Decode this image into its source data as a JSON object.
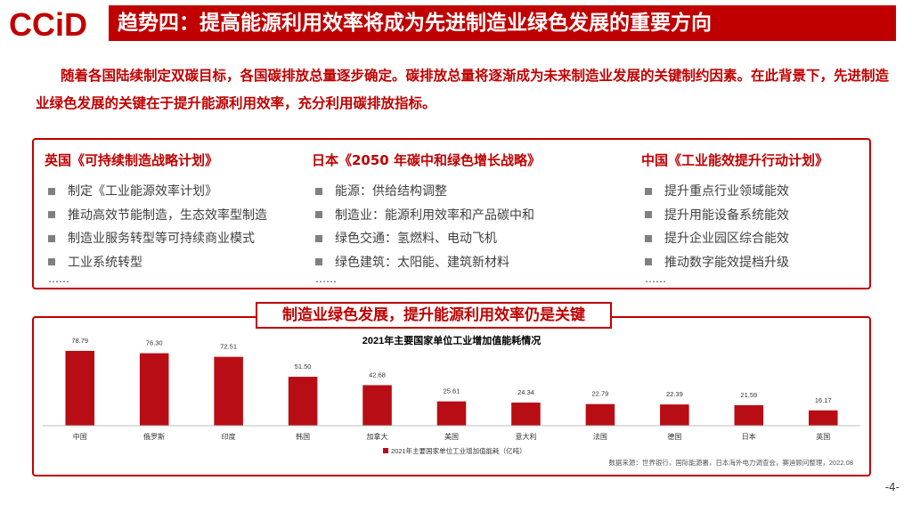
{
  "logo": {
    "text": "CCiD"
  },
  "header": {
    "title": "趋势四：提高能源利用效率将成为先进制造业绿色发展的重要方向"
  },
  "intro": {
    "text": "随着各国陆续制定双碳目标，各国碳排放总量逐步确定。碳排放总量将逐渐成为未来制造业发展的关键制约因素。在此背景下，先进制造业绿色发展的关键在于提升能源利用效率，充分利用碳排放指标。"
  },
  "policies": [
    {
      "title": "英国《可持续制造战略计划》",
      "items": [
        "制定《工业能源效率计划》",
        "推动高效节能制造，生态效率型制造",
        "制造业服务转型等可持续商业模式",
        "工业系统转型"
      ],
      "more": "……"
    },
    {
      "title": "日本《2050  年碳中和绿色增长战略》",
      "items": [
        "能源：供给结构调整",
        "制造业：能源利用效率和产品碳中和",
        "绿色交通：氢燃料、电动飞机",
        "绿色建筑：太阳能、建筑新材料"
      ],
      "more": "……"
    },
    {
      "title": "中国《工业能效提升行动计划》",
      "items": [
        "提升重点行业领域能效",
        "提升用能设备系统能效",
        "提升企业园区综合能效",
        "推动数字能效提档升级"
      ],
      "more": "……"
    }
  ],
  "banner": {
    "text": "制造业绿色发展，提升能源利用效率仍是关键"
  },
  "chart_data": {
    "type": "bar",
    "title": "2021年主要国家单位工业增加值能耗情况",
    "categories": [
      "中国",
      "俄罗斯",
      "印度",
      "韩国",
      "加拿大",
      "美国",
      "意大利",
      "法国",
      "德国",
      "日本",
      "英国"
    ],
    "series": [
      {
        "name": "2021年主要国家单位工业增加值能耗（亿吨）",
        "values": [
          78.79,
          76.3,
          72.51,
          51.5,
          42.68,
          25.61,
          24.34,
          22.79,
          22.39,
          21.59,
          16.17
        ]
      }
    ],
    "data_labels": [
      "78.79",
      "76.30",
      "72.51",
      "51.50",
      "42.68",
      "25.61",
      "24.34",
      "22.79",
      "22.39",
      "21.59",
      "16.17"
    ],
    "ylim": [
      0,
      90
    ],
    "grid": false,
    "legend": "bottom-center",
    "color": "#b80d14",
    "source": "数据来源：世界银行，国际能源署，日本海外电力调查会，赛迪顾问整理，2022.08"
  },
  "page": {
    "number": "-4-"
  }
}
